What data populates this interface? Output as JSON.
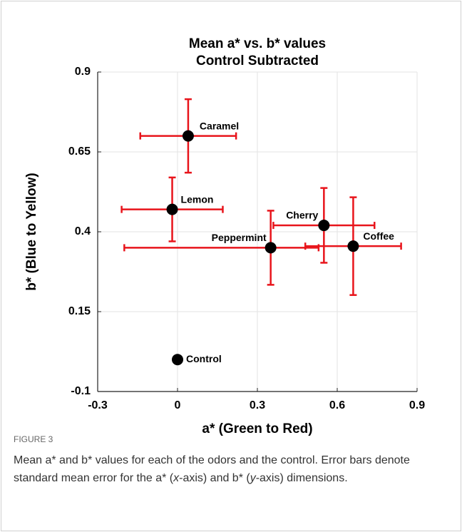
{
  "chart_data": {
    "type": "scatter",
    "title": "Mean a* vs. b* values",
    "subtitle": "Control Subtracted",
    "x_label": "a* (Green to Red)",
    "y_label": "b* (Blue to Yellow)",
    "xlim": [
      -0.3,
      0.9
    ],
    "xticks": [
      -0.3,
      0,
      0.3,
      0.6,
      0.9
    ],
    "ylim": [
      -0.1,
      0.9
    ],
    "yticks": [
      -0.1,
      0.15,
      0.4,
      0.65,
      0.9
    ],
    "grid": true,
    "series": [
      {
        "color": "#000000",
        "error_color": "#e8141b",
        "labels": [
          "Caramel",
          "Lemon",
          "Cherry",
          "Peppermint",
          "Coffee",
          "Control"
        ],
        "x": [
          0.04,
          -0.02,
          0.55,
          0.35,
          0.66,
          0
        ],
        "y": [
          0.7,
          0.47,
          0.42,
          0.35,
          0.355,
          0
        ],
        "xerr_minus": [
          0.18,
          0.19,
          0.19,
          0.55,
          0.18,
          null
        ],
        "xerr_plus": [
          0.18,
          0.19,
          0.19,
          0.18,
          0.18,
          null
        ],
        "yerr": [
          0.115,
          0.1,
          0.117,
          0.116,
          0.153,
          null
        ]
      }
    ]
  },
  "caption": {
    "figure": "FIGURE 3",
    "parts": [
      "Mean a* and b* values for each of the odors and the control. Error bars denote standard mean error for the a* (",
      "x",
      "-axis) and b* (",
      "y",
      "-axis) dimensions."
    ]
  }
}
